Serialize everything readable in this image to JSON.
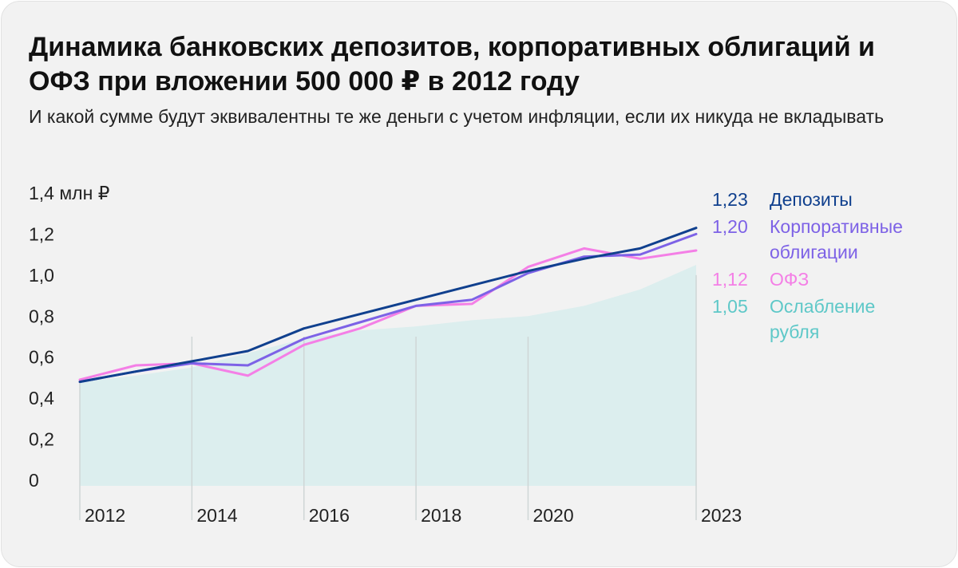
{
  "header": {
    "title": "Динамика банковских депозитов, корпоративных облигаций и ОФЗ при вложении 500 000 ₽ в 2012 году",
    "subtitle": "И какой сумме будут эквивалентны те же деньги с учетом инфляции, если их никуда не вкладывать"
  },
  "chart_data": {
    "type": "line",
    "ylim": [
      0,
      1.4
    ],
    "xlim": [
      2012,
      2023
    ],
    "y_ticks": [
      {
        "value": 0,
        "label": "0"
      },
      {
        "value": 0.2,
        "label": "0,2"
      },
      {
        "value": 0.4,
        "label": "0,4"
      },
      {
        "value": 0.6,
        "label": "0,6"
      },
      {
        "value": 0.8,
        "label": "0,8"
      },
      {
        "value": 1.0,
        "label": "1,0"
      },
      {
        "value": 1.2,
        "label": "1,2"
      },
      {
        "value": 1.4,
        "label": "1,4 млн ₽"
      }
    ],
    "x_ticks": [
      {
        "value": 2012,
        "label": "2012"
      },
      {
        "value": 2014,
        "label": "2014"
      },
      {
        "value": 2016,
        "label": "2016"
      },
      {
        "value": 2018,
        "label": "2018"
      },
      {
        "value": 2020,
        "label": "2020"
      },
      {
        "value": 2023,
        "label": "2023"
      }
    ],
    "gridlines_x": [
      2014,
      2016,
      2018,
      2020
    ],
    "x": [
      2012,
      2013,
      2014,
      2015,
      2016,
      2017,
      2018,
      2019,
      2020,
      2021,
      2022,
      2023
    ],
    "series": [
      {
        "name": "Ослабление рубля",
        "label": "1,05",
        "type": "area",
        "color": "#5ec8c8",
        "fill": "#dceeee",
        "values": [
          0.48,
          0.51,
          0.55,
          0.62,
          0.69,
          0.73,
          0.75,
          0.78,
          0.8,
          0.85,
          0.93,
          1.05
        ]
      },
      {
        "name": "ОФЗ",
        "label": "1,12",
        "type": "line",
        "color": "#f47fe6",
        "values": [
          0.49,
          0.56,
          0.57,
          0.51,
          0.66,
          0.74,
          0.85,
          0.86,
          1.04,
          1.13,
          1.08,
          1.12
        ]
      },
      {
        "name": "Корпоративные облигации",
        "label": "1,20",
        "type": "line",
        "color": "#7d62e6",
        "values": [
          0.48,
          0.53,
          0.57,
          0.56,
          0.69,
          0.77,
          0.85,
          0.88,
          1.01,
          1.09,
          1.1,
          1.2
        ]
      },
      {
        "name": "Депозиты",
        "label": "1,23",
        "type": "line",
        "color": "#10408e",
        "values": [
          0.48,
          0.53,
          0.58,
          0.63,
          0.74,
          0.81,
          0.88,
          0.95,
          1.02,
          1.08,
          1.13,
          1.23
        ]
      }
    ],
    "legend": [
      {
        "value": "1,23",
        "name": "Депозиты",
        "color": "#10408e"
      },
      {
        "value": "1,20",
        "name": "Корпоративные облигации",
        "name_lines": [
          "Корпоративные",
          "облигации"
        ],
        "color": "#7d62e6"
      },
      {
        "value": "1,12",
        "name": "ОФЗ",
        "color": "#f47fe6"
      },
      {
        "value": "1,05",
        "name": "Ослабление рубля",
        "name_lines": [
          "Ослабление",
          "рубля"
        ],
        "color": "#5ec8c8"
      }
    ]
  }
}
